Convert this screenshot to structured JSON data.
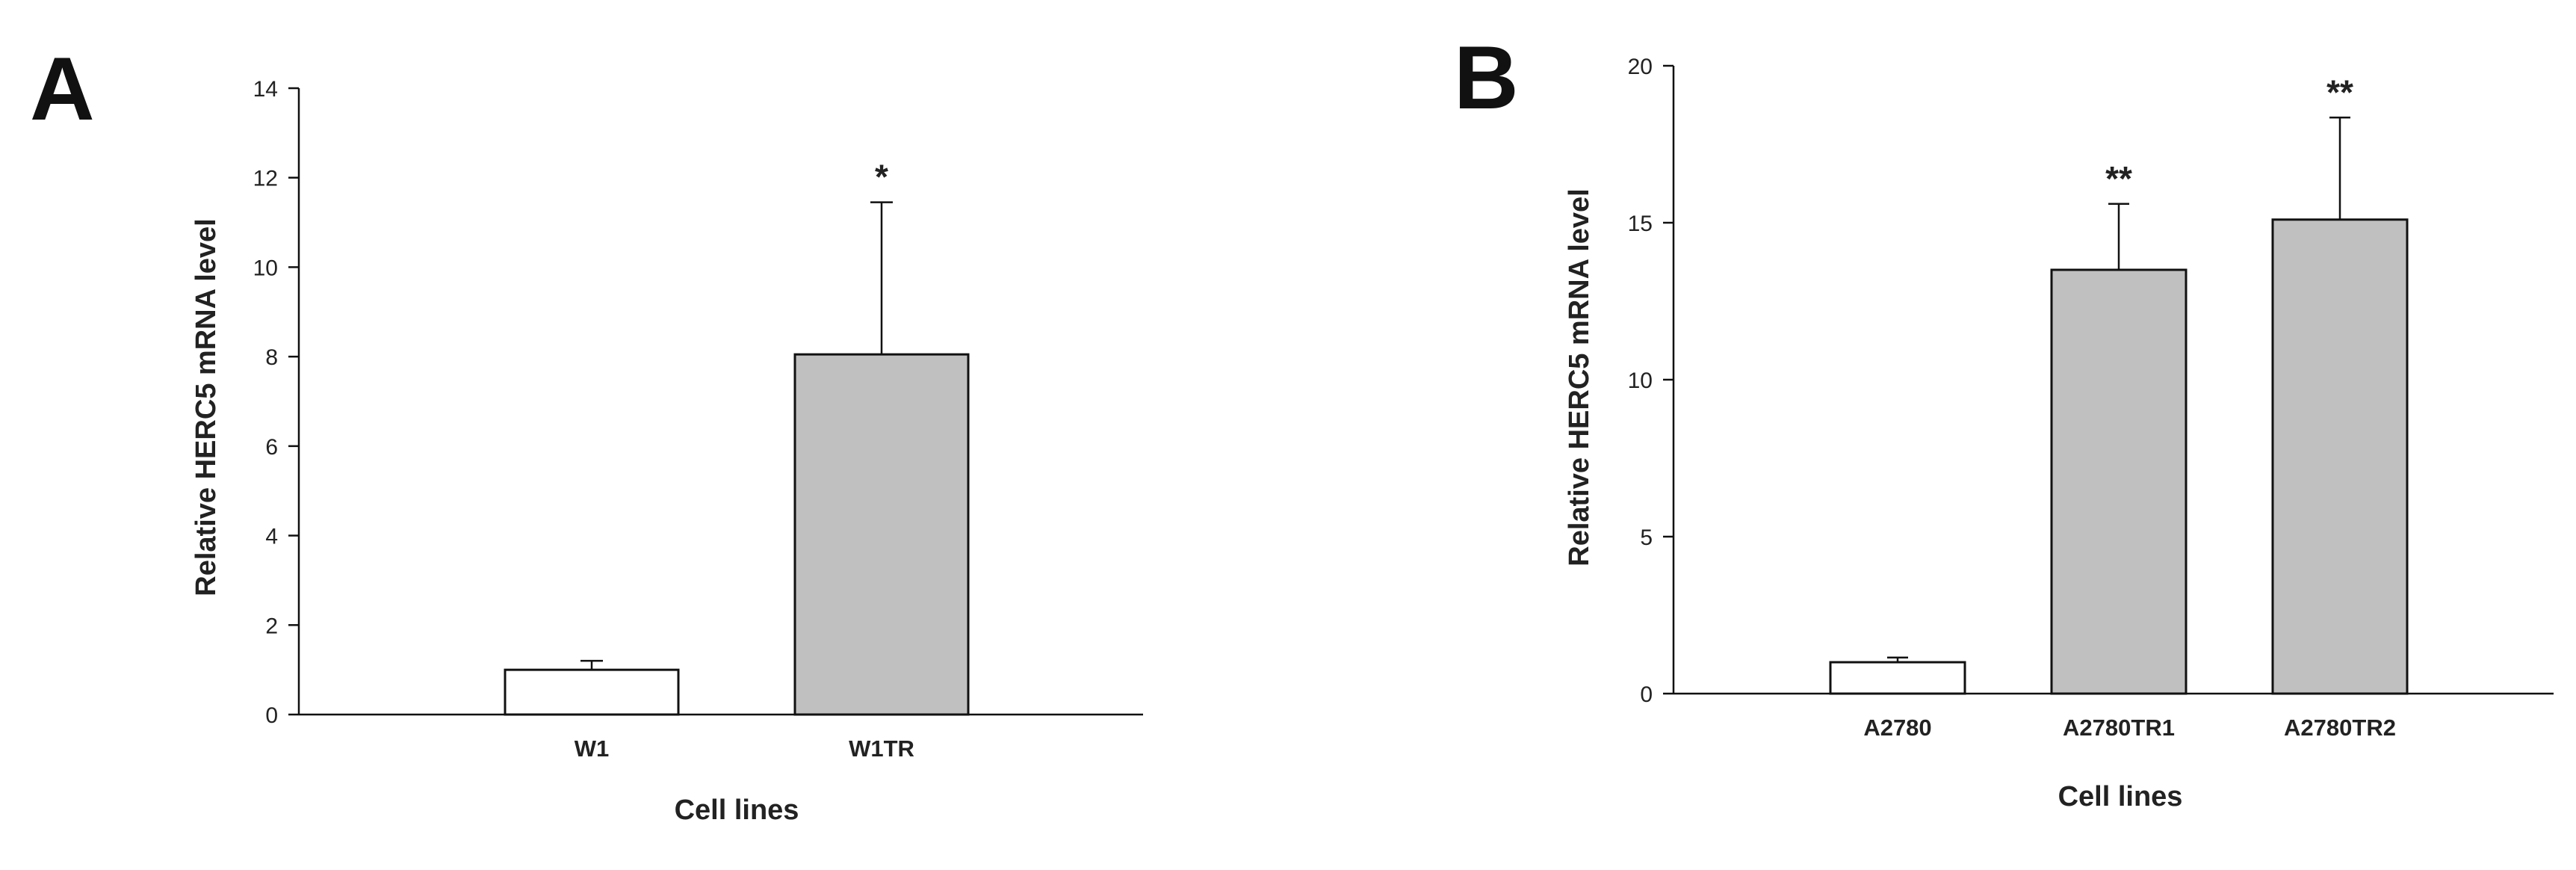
{
  "chart_data": [
    {
      "panel": "A",
      "type": "bar",
      "categories": [
        "W1",
        "W1TR"
      ],
      "values": [
        1.0,
        8.05
      ],
      "error_upper": [
        0.2,
        3.4
      ],
      "significance": [
        "",
        "*"
      ],
      "bar_colors": [
        "#ffffff",
        "#c0c0c0"
      ],
      "xlabel": "Cell lines",
      "ylabel": "Relative HERC5 mRNA level",
      "ylim": [
        0,
        14
      ],
      "yticks": [
        0,
        2,
        4,
        6,
        8,
        10,
        12,
        14
      ],
      "grid": false,
      "legend": "none"
    },
    {
      "panel": "B",
      "type": "bar",
      "categories": [
        "A2780",
        "A2780TR1",
        "A2780TR2"
      ],
      "values": [
        1.0,
        13.5,
        15.1
      ],
      "error_upper": [
        0.15,
        2.1,
        3.25
      ],
      "significance": [
        "",
        "**",
        "**"
      ],
      "bar_colors": [
        "#ffffff",
        "#c0c0c0",
        "#c0c0c0"
      ],
      "xlabel": "Cell lines",
      "ylabel": "Relative HERC5 mRNA level",
      "ylim": [
        0,
        20
      ],
      "yticks": [
        0,
        5,
        10,
        15,
        20
      ],
      "grid": false,
      "legend": "none"
    }
  ]
}
